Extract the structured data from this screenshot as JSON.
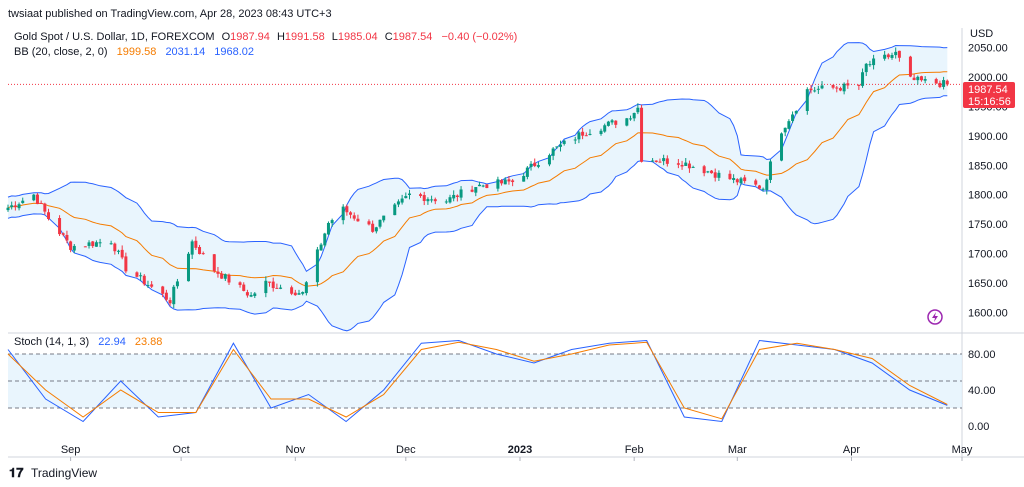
{
  "publish_line": "twsiaat published on TradingView.com, Apr 28, 2023 08:43 UTC+3",
  "symbol_line": {
    "name": "Gold Spot / U.S. Dollar, 1D, FOREXCOM",
    "o_label": "O",
    "o": "1987.94",
    "h_label": "H",
    "h": "1991.58",
    "l_label": "L",
    "l": "1985.04",
    "c_label": "C",
    "c": "1987.54",
    "change": "−0.40 (−0.02%)"
  },
  "bb_line": {
    "name": "BB (20, close, 2, 0)",
    "basis": "1999.58",
    "upper": "2031.14",
    "lower": "1968.02"
  },
  "stoch_line": {
    "name": "Stoch (14, 1, 3)",
    "k": "22.94",
    "d": "23.88"
  },
  "price_badge": {
    "price": "1987.54",
    "countdown": "15:16:56"
  },
  "currency": "USD",
  "brand": "TradingView",
  "colors": {
    "up": "#089981",
    "down": "#f23645",
    "bb_band": "#2962ff",
    "bb_basis": "#f57c00",
    "stoch_k": "#2962ff",
    "stoch_d": "#f57c00",
    "fill": "#e3f2fd",
    "badge": "#f23645"
  },
  "chart_data": [
    {
      "type": "candlestick",
      "title": "Gold Spot / U.S. Dollar, 1D, FOREXCOM",
      "x_ticks": [
        "Sep",
        "Oct",
        "Nov",
        "Dec",
        "2023",
        "Feb",
        "Mar",
        "Apr",
        "May"
      ],
      "y_ticks": [
        "2050.00",
        "2000.00",
        "1950.00",
        "1900.00",
        "1850.00",
        "1800.00",
        "1750.00",
        "1700.00",
        "1650.00",
        "1600.00"
      ],
      "ylim": [
        1570,
        2080
      ],
      "x_range": [
        "Aug 15, 2022",
        "May 1, 2023"
      ],
      "last_close": 1987.54,
      "approx_close_series": [
        [
          "Aug 15",
          1778
        ],
        [
          "Aug 22",
          1800
        ],
        [
          "Aug 26",
          1760
        ],
        [
          "Sep 1",
          1712
        ],
        [
          "Sep 12",
          1722
        ],
        [
          "Sep 16",
          1675
        ],
        [
          "Sep 28",
          1620
        ],
        [
          "Oct 4",
          1720
        ],
        [
          "Oct 10",
          1672
        ],
        [
          "Oct 20",
          1628
        ],
        [
          "Oct 24",
          1650
        ],
        [
          "Nov 3",
          1632
        ],
        [
          "Nov 10",
          1752
        ],
        [
          "Nov 14",
          1775
        ],
        [
          "Nov 22",
          1742
        ],
        [
          "Dec 2",
          1800
        ],
        [
          "Dec 12",
          1790
        ],
        [
          "Dec 20",
          1815
        ],
        [
          "Dec 30",
          1822
        ],
        [
          "Jan 9",
          1872
        ],
        [
          "Jan 18",
          1905
        ],
        [
          "Jan 30",
          1930
        ],
        [
          "Feb 2",
          1948
        ],
        [
          "Feb 3",
          1862
        ],
        [
          "Feb 14",
          1855
        ],
        [
          "Feb 28",
          1825
        ],
        [
          "Mar 8",
          1812
        ],
        [
          "Mar 13",
          1910
        ],
        [
          "Mar 20",
          1978
        ],
        [
          "Apr 3",
          1985
        ],
        [
          "Apr 5",
          2020
        ],
        [
          "Apr 13",
          2040
        ],
        [
          "Apr 17",
          1995
        ],
        [
          "Apr 27",
          1987.54
        ]
      ],
      "bollinger_bands": {
        "upper": [
          1810,
          1780,
          1750,
          1735,
          1730,
          1735,
          1755,
          1700,
          1705,
          1830,
          1835,
          1850,
          1960,
          1958,
          1900,
          1960,
          2050,
          2030
        ],
        "basis": [
          1790,
          1767,
          1735,
          1695,
          1700,
          1680,
          1678,
          1670,
          1720,
          1775,
          1795,
          1825,
          1895,
          1895,
          1845,
          1875,
          1995,
          1999.58
        ],
        "lower": [
          1770,
          1745,
          1690,
          1640,
          1630,
          1620,
          1630,
          1580,
          1640,
          1735,
          1760,
          1795,
          1860,
          1845,
          1800,
          1760,
          1955,
          1968.02
        ]
      }
    },
    {
      "type": "line",
      "title": "Stoch (14, 1, 3)",
      "y_ticks": [
        "80.00",
        "40.00",
        "0.00"
      ],
      "ylim": [
        -10,
        100
      ],
      "series": [
        {
          "name": "K",
          "values": [
            85,
            30,
            5,
            50,
            10,
            15,
            92,
            20,
            35,
            5,
            40,
            92,
            95,
            80,
            70,
            85,
            92,
            95,
            10,
            5,
            95,
            90,
            85,
            70,
            40,
            22.94
          ]
        },
        {
          "name": "D",
          "values": [
            80,
            40,
            10,
            40,
            15,
            15,
            85,
            30,
            30,
            10,
            35,
            85,
            93,
            85,
            72,
            80,
            90,
            93,
            20,
            8,
            85,
            92,
            85,
            75,
            45,
            23.88
          ]
        }
      ]
    }
  ]
}
